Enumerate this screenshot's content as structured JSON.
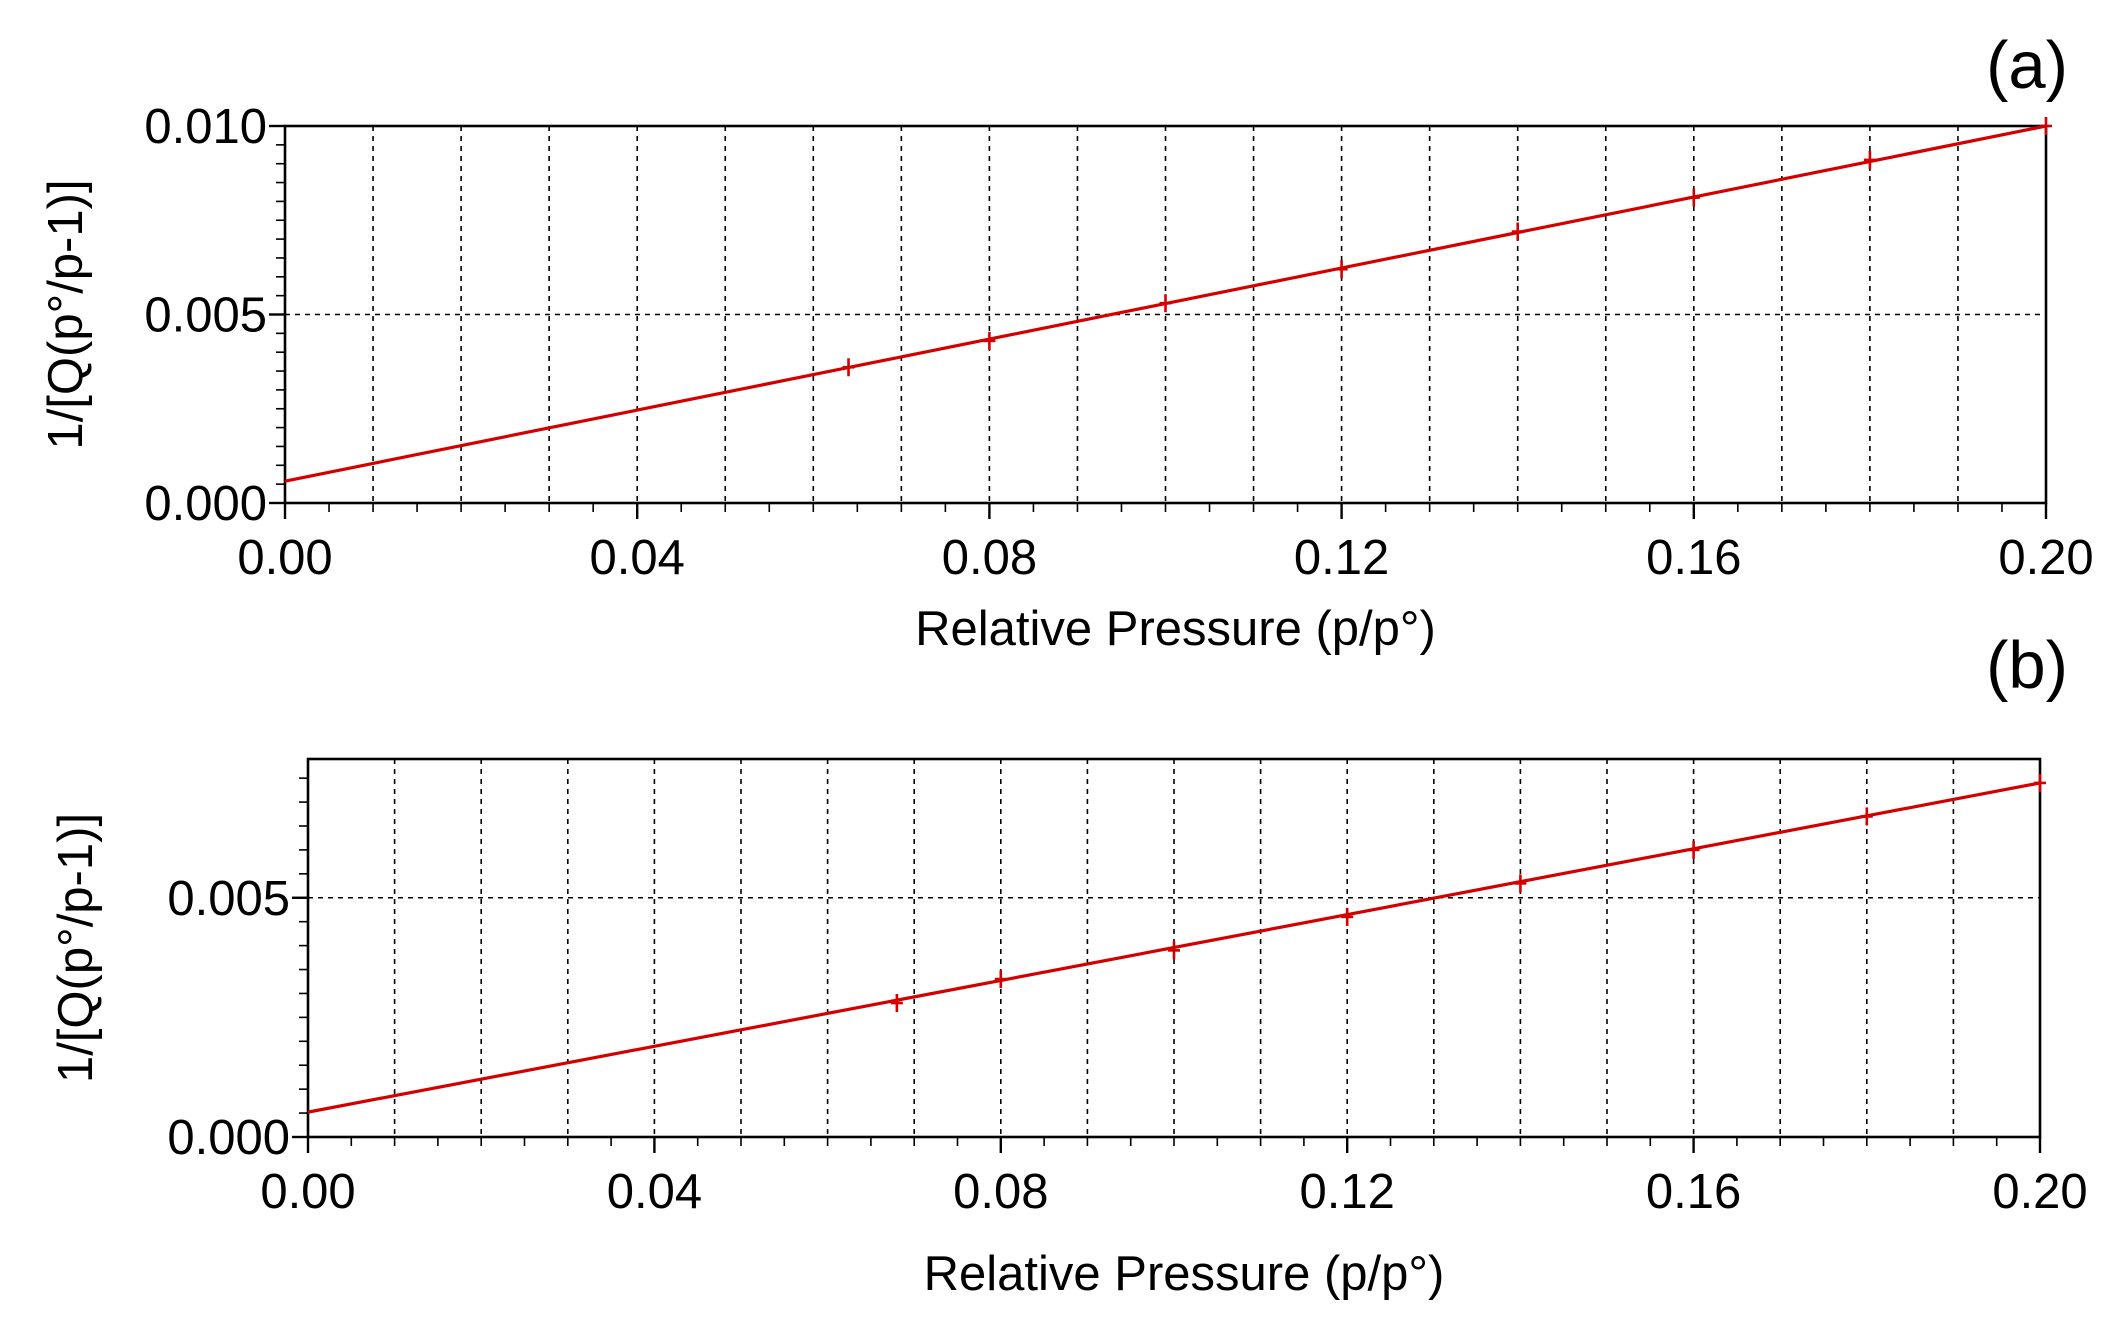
{
  "chart_data": [
    {
      "panel": "(a)",
      "type": "line",
      "xlabel": "Relative Pressure (p/p°)",
      "ylabel": "1/[Q(p°/p-1)]",
      "xlim": [
        0.0,
        0.2
      ],
      "ylim": [
        0.0,
        0.01
      ],
      "xticks": [
        0.0,
        0.04,
        0.08,
        0.12,
        0.16,
        0.2
      ],
      "xtick_labels": [
        "0.00",
        "0.04",
        "0.08",
        "0.12",
        "0.16",
        "0.20"
      ],
      "yticks": [
        0.0,
        0.005,
        0.01
      ],
      "ytick_labels": [
        "0.000",
        "0.005",
        "0.010"
      ],
      "grid_x": [
        0.01,
        0.02,
        0.03,
        0.04,
        0.05,
        0.06,
        0.07,
        0.08,
        0.09,
        0.1,
        0.11,
        0.12,
        0.13,
        0.14,
        0.15,
        0.16,
        0.17,
        0.18,
        0.19
      ],
      "grid_y": [
        0.005
      ],
      "points": {
        "x": [
          0.064,
          0.08,
          0.1,
          0.12,
          0.14,
          0.16,
          0.18,
          0.2
        ],
        "y": [
          0.0036,
          0.0043,
          0.0053,
          0.0062,
          0.0072,
          0.0081,
          0.0091,
          0.01
        ]
      },
      "fit_line": {
        "x": [
          0.0,
          0.2
        ],
        "y": [
          0.00058,
          0.01
        ]
      }
    },
    {
      "panel": "(b)",
      "type": "line",
      "xlabel": "Relative Pressure (p/p°)",
      "ylabel": "1/[Q(p°/p-1)]",
      "xlim": [
        0.0,
        0.2
      ],
      "ylim": [
        0.0,
        0.0079
      ],
      "xticks": [
        0.0,
        0.04,
        0.08,
        0.12,
        0.16,
        0.2
      ],
      "xtick_labels": [
        "0.00",
        "0.04",
        "0.08",
        "0.12",
        "0.16",
        "0.20"
      ],
      "yticks": [
        0.0,
        0.005
      ],
      "ytick_labels": [
        "0.000",
        "0.005"
      ],
      "grid_x": [
        0.01,
        0.02,
        0.03,
        0.04,
        0.05,
        0.06,
        0.07,
        0.08,
        0.09,
        0.1,
        0.11,
        0.12,
        0.13,
        0.14,
        0.15,
        0.16,
        0.17,
        0.18,
        0.19
      ],
      "grid_y": [
        0.005
      ],
      "points": {
        "x": [
          0.068,
          0.08,
          0.1,
          0.12,
          0.14,
          0.16,
          0.18,
          0.2
        ],
        "y": [
          0.0028,
          0.0033,
          0.0039,
          0.0046,
          0.0053,
          0.006,
          0.0067,
          0.0074
        ]
      },
      "fit_line": {
        "x": [
          0.0,
          0.2
        ],
        "y": [
          0.00052,
          0.0074
        ]
      }
    }
  ]
}
